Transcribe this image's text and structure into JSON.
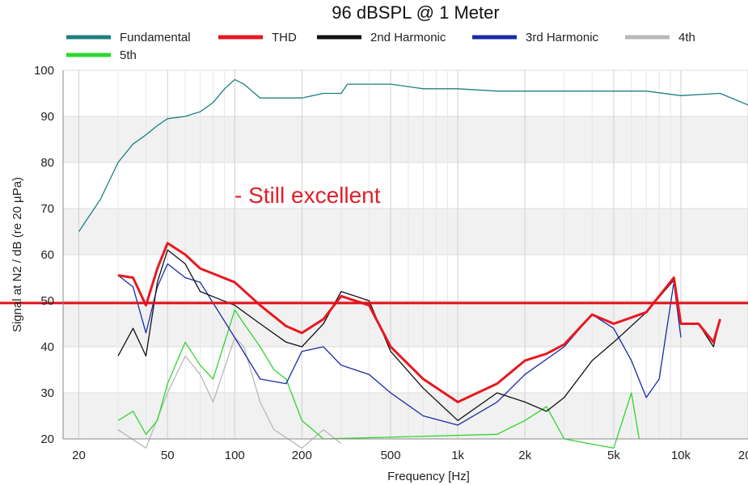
{
  "chart_data": {
    "type": "line",
    "title": "96 dBSPL @ 1 Meter",
    "xlabel": "Frequency [Hz]",
    "ylabel": "Signal at N2 / dB (re 20 µPa)",
    "x_scale": "log",
    "xlim": [
      17,
      20000
    ],
    "ylim": [
      20,
      100
    ],
    "x_ticks": [
      {
        "value": 20,
        "label": "20"
      },
      {
        "value": 50,
        "label": "50"
      },
      {
        "value": 100,
        "label": "100"
      },
      {
        "value": 200,
        "label": "200"
      },
      {
        "value": 500,
        "label": "500"
      },
      {
        "value": 1000,
        "label": "1k"
      },
      {
        "value": 2000,
        "label": "2k"
      },
      {
        "value": 5000,
        "label": "5k"
      },
      {
        "value": 10000,
        "label": "10k"
      },
      {
        "value": 20000,
        "label": "20k"
      }
    ],
    "y_ticks": [
      20,
      30,
      40,
      50,
      60,
      70,
      80,
      90,
      100
    ],
    "grid": true,
    "legend_position": "top",
    "annotation": {
      "text": "- Still excellent",
      "color": "#e0202a"
    },
    "reference_line": {
      "y": 49.5,
      "color": "#e0101a"
    },
    "series": [
      {
        "name": "Fundamental",
        "color": "#1f7f7f",
        "points": [
          [
            20,
            65
          ],
          [
            25,
            72
          ],
          [
            30,
            80
          ],
          [
            35,
            84
          ],
          [
            40,
            86
          ],
          [
            45,
            88
          ],
          [
            50,
            89.5
          ],
          [
            60,
            90
          ],
          [
            70,
            91
          ],
          [
            80,
            93
          ],
          [
            90,
            96
          ],
          [
            100,
            98
          ],
          [
            110,
            97
          ],
          [
            130,
            94
          ],
          [
            150,
            94
          ],
          [
            170,
            94
          ],
          [
            200,
            94
          ],
          [
            250,
            95
          ],
          [
            300,
            95
          ],
          [
            320,
            97
          ],
          [
            400,
            97
          ],
          [
            500,
            97
          ],
          [
            700,
            96
          ],
          [
            1000,
            96
          ],
          [
            1500,
            95.5
          ],
          [
            2000,
            95.5
          ],
          [
            3000,
            95.5
          ],
          [
            5000,
            95.5
          ],
          [
            7000,
            95.5
          ],
          [
            10000,
            94.5
          ],
          [
            15000,
            95
          ],
          [
            20000,
            92.5
          ]
        ]
      },
      {
        "name": "THD",
        "color": "#e81820",
        "points": [
          [
            30,
            55.5
          ],
          [
            35,
            55
          ],
          [
            40,
            49
          ],
          [
            45,
            57
          ],
          [
            50,
            62.5
          ],
          [
            60,
            60
          ],
          [
            70,
            57
          ],
          [
            100,
            54
          ],
          [
            130,
            49
          ],
          [
            170,
            44.5
          ],
          [
            200,
            43
          ],
          [
            250,
            46
          ],
          [
            300,
            51
          ],
          [
            400,
            49
          ],
          [
            500,
            40
          ],
          [
            700,
            33
          ],
          [
            1000,
            28
          ],
          [
            1500,
            32
          ],
          [
            2000,
            37
          ],
          [
            2500,
            38.5
          ],
          [
            3000,
            40.5
          ],
          [
            4000,
            47
          ],
          [
            5000,
            45
          ],
          [
            7000,
            47.5
          ],
          [
            9300,
            55
          ],
          [
            10000,
            45
          ],
          [
            12000,
            45
          ],
          [
            14000,
            41
          ],
          [
            15000,
            46
          ]
        ]
      },
      {
        "name": "2nd Harmonic",
        "color": "#111111",
        "points": [
          [
            30,
            38
          ],
          [
            35,
            44
          ],
          [
            40,
            38
          ],
          [
            45,
            54
          ],
          [
            50,
            61
          ],
          [
            60,
            58
          ],
          [
            70,
            52
          ],
          [
            100,
            49
          ],
          [
            130,
            45
          ],
          [
            170,
            41
          ],
          [
            200,
            40
          ],
          [
            250,
            45
          ],
          [
            300,
            52
          ],
          [
            400,
            50
          ],
          [
            500,
            39
          ],
          [
            700,
            31
          ],
          [
            1000,
            24
          ],
          [
            1500,
            30
          ],
          [
            2000,
            28
          ],
          [
            2500,
            26
          ],
          [
            3000,
            29
          ],
          [
            4000,
            37
          ],
          [
            5000,
            41
          ],
          [
            7000,
            47.5
          ],
          [
            9300,
            54.5
          ],
          [
            10000,
            45
          ],
          [
            12000,
            45
          ],
          [
            14000,
            40
          ],
          [
            15000,
            46
          ]
        ]
      },
      {
        "name": "3rd Harmonic",
        "color": "#1a2aa8",
        "points": [
          [
            30,
            55.5
          ],
          [
            35,
            53
          ],
          [
            40,
            43
          ],
          [
            45,
            53
          ],
          [
            50,
            58
          ],
          [
            60,
            55
          ],
          [
            70,
            54
          ],
          [
            100,
            42
          ],
          [
            130,
            33
          ],
          [
            170,
            32
          ],
          [
            200,
            39
          ],
          [
            250,
            40
          ],
          [
            300,
            36
          ],
          [
            400,
            34
          ],
          [
            500,
            30
          ],
          [
            700,
            25
          ],
          [
            1000,
            23
          ],
          [
            1500,
            28
          ],
          [
            2000,
            34
          ],
          [
            3000,
            40
          ],
          [
            4000,
            47
          ],
          [
            5000,
            44
          ],
          [
            6000,
            37
          ],
          [
            7000,
            29
          ],
          [
            8000,
            33
          ],
          [
            9300,
            54
          ],
          [
            10000,
            42
          ]
        ]
      },
      {
        "name": "4th",
        "color": "#b8b8b8",
        "points": [
          [
            30,
            22
          ],
          [
            40,
            18
          ],
          [
            50,
            30
          ],
          [
            60,
            38
          ],
          [
            70,
            34
          ],
          [
            80,
            28
          ],
          [
            100,
            42
          ],
          [
            110,
            40
          ],
          [
            130,
            28
          ],
          [
            150,
            22
          ],
          [
            200,
            18
          ],
          [
            250,
            22
          ],
          [
            300,
            19
          ]
        ]
      },
      {
        "name": "5th",
        "color": "#2ed62e",
        "points": [
          [
            30,
            24
          ],
          [
            35,
            26
          ],
          [
            40,
            21
          ],
          [
            45,
            24
          ],
          [
            50,
            32
          ],
          [
            60,
            41
          ],
          [
            70,
            36
          ],
          [
            80,
            33
          ],
          [
            100,
            48
          ],
          [
            110,
            45
          ],
          [
            130,
            40
          ],
          [
            150,
            35
          ],
          [
            170,
            33
          ],
          [
            200,
            24
          ],
          [
            250,
            20
          ],
          [
            1500,
            21
          ],
          [
            2000,
            24
          ],
          [
            2500,
            27
          ],
          [
            3000,
            20
          ],
          [
            5000,
            18
          ],
          [
            6000,
            30
          ],
          [
            6500,
            20
          ]
        ]
      }
    ]
  }
}
